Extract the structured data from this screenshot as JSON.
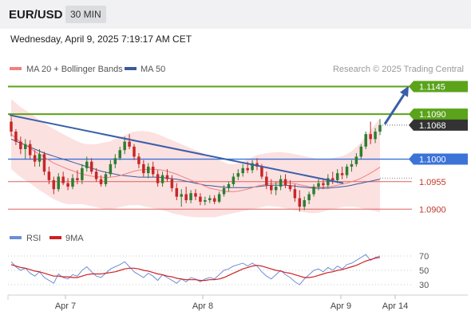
{
  "header": {
    "pair": "EUR/USD",
    "timeframe": "30 MIN",
    "datetime": "Wednesday, April 9, 2025 7:19:17 AM CET"
  },
  "legend": {
    "ma20_bb": "MA 20 + Bollinger Bands",
    "ma50": "MA 50",
    "research": "Research © 2025 Trading Central",
    "rsi": "RSI",
    "rsi_ma": "9MA"
  },
  "colors": {
    "resistance": "#5aa31a",
    "pivot": "#3b73d9",
    "support": "#e06060",
    "current": "#333333",
    "ma20": "#f08080",
    "ma50": "#3b5a9a",
    "bands": "#fbdcdc",
    "trendline": "#3a5fa8",
    "candle_up": "#2e7d32",
    "candle_down": "#c62828",
    "rsi": "#6b8fd6",
    "rsi_ma": "#d02020"
  },
  "chart_data": [
    {
      "type": "candlestick",
      "x_ticks": [
        "Apr 7",
        "Apr 8",
        "Apr 9",
        "Apr 14"
      ],
      "y_range": [
        1.0875,
        1.1165
      ],
      "levels": [
        {
          "value": 1.1145,
          "label": "1.1145",
          "kind": "resistance"
        },
        {
          "value": 1.109,
          "label": "1.1090",
          "kind": "resistance"
        },
        {
          "value": 1.1068,
          "label": "1.1068",
          "kind": "current"
        },
        {
          "value": 1.1,
          "label": "1.1000",
          "kind": "pivot"
        },
        {
          "value": 1.0955,
          "label": "1.0955",
          "kind": "support"
        },
        {
          "value": 1.09,
          "label": "1.0900",
          "kind": "support"
        }
      ],
      "ohlc": [
        [
          1.1075,
          1.1085,
          1.1045,
          1.1055
        ],
        [
          1.1055,
          1.106,
          1.1028,
          1.1035
        ],
        [
          1.1035,
          1.1045,
          1.101,
          1.102
        ],
        [
          1.102,
          1.104,
          1.1,
          1.103
        ],
        [
          1.103,
          1.1038,
          1.1,
          1.1008
        ],
        [
          1.1008,
          1.1018,
          1.0985,
          1.0995
        ],
        [
          1.0995,
          1.102,
          1.0985,
          1.101
        ],
        [
          1.101,
          1.1015,
          1.0968,
          1.0975
        ],
        [
          1.0975,
          1.0985,
          1.095,
          1.0958
        ],
        [
          1.0958,
          1.0965,
          1.093,
          1.094
        ],
        [
          1.094,
          1.0972,
          1.0935,
          1.0965
        ],
        [
          1.0965,
          1.0975,
          1.0948,
          1.0952
        ],
        [
          1.0952,
          1.0962,
          1.0938,
          1.0945
        ],
        [
          1.0945,
          1.097,
          1.094,
          1.0962
        ],
        [
          1.0962,
          1.0978,
          1.095,
          1.0958
        ],
        [
          1.0958,
          1.099,
          1.095,
          1.0982
        ],
        [
          1.0982,
          1.1005,
          1.0975,
          1.0995
        ],
        [
          1.0995,
          1.1002,
          1.097,
          1.0975
        ],
        [
          1.0975,
          1.0982,
          1.0955,
          1.096
        ],
        [
          1.096,
          1.0968,
          1.0945,
          1.095
        ],
        [
          1.095,
          1.0975,
          1.0945,
          1.097
        ],
        [
          1.097,
          1.0998,
          1.0965,
          1.099
        ],
        [
          1.099,
          1.101,
          1.0982,
          1.1002
        ],
        [
          1.1002,
          1.1025,
          1.0998,
          1.1018
        ],
        [
          1.1018,
          1.1045,
          1.101,
          1.1035
        ],
        [
          1.1035,
          1.105,
          1.102,
          1.1025
        ],
        [
          1.1025,
          1.103,
          1.0998,
          1.1005
        ],
        [
          1.1005,
          1.1012,
          1.0982,
          1.099
        ],
        [
          1.099,
          1.0998,
          1.0965,
          1.0972
        ],
        [
          1.0972,
          1.0992,
          1.0962,
          1.0985
        ],
        [
          1.0985,
          1.0995,
          1.0965,
          1.097
        ],
        [
          1.097,
          1.0978,
          1.0945,
          1.0952
        ],
        [
          1.0952,
          1.0975,
          1.0945,
          1.0968
        ],
        [
          1.0968,
          1.098,
          1.0955,
          1.096
        ],
        [
          1.096,
          1.0968,
          1.0935,
          1.0942
        ],
        [
          1.0942,
          1.0952,
          1.0918,
          1.0925
        ],
        [
          1.0925,
          1.094,
          1.0905,
          1.093
        ],
        [
          1.093,
          1.0945,
          1.0912,
          1.0918
        ],
        [
          1.0918,
          1.0938,
          1.0912,
          1.0932
        ],
        [
          1.0932,
          1.094,
          1.0918,
          1.0925
        ],
        [
          1.0925,
          1.0932,
          1.0908,
          1.0915
        ],
        [
          1.0915,
          1.0925,
          1.0908,
          1.0918
        ],
        [
          1.0918,
          1.0928,
          1.0912,
          1.0922
        ],
        [
          1.0922,
          1.0928,
          1.091,
          1.0915
        ],
        [
          1.0915,
          1.0935,
          1.0912,
          1.093
        ],
        [
          1.093,
          1.0948,
          1.0925,
          1.0942
        ],
        [
          1.0942,
          1.0955,
          1.0935,
          1.095
        ],
        [
          1.095,
          1.0972,
          1.0945,
          1.0965
        ],
        [
          1.0965,
          1.098,
          1.0958,
          1.0972
        ],
        [
          1.0972,
          1.099,
          1.0965,
          1.0982
        ],
        [
          1.0982,
          1.0995,
          1.0972,
          1.0978
        ],
        [
          1.0978,
          1.0998,
          1.0972,
          1.0992
        ],
        [
          1.0992,
          1.1002,
          1.0978,
          1.0985
        ],
        [
          1.0985,
          1.099,
          1.096,
          1.0965
        ],
        [
          1.0965,
          1.0975,
          1.094,
          1.0948
        ],
        [
          1.0948,
          1.096,
          1.093,
          1.0938
        ],
        [
          1.0938,
          1.0955,
          1.0928,
          1.0945
        ],
        [
          1.0945,
          1.0968,
          1.0938,
          1.096
        ],
        [
          1.096,
          1.097,
          1.0942,
          1.0948
        ],
        [
          1.0948,
          1.0958,
          1.0935,
          1.094
        ],
        [
          1.094,
          1.095,
          1.0915,
          1.0922
        ],
        [
          1.0922,
          1.0938,
          1.0895,
          1.0905
        ],
        [
          1.0905,
          1.0925,
          1.0898,
          1.0918
        ],
        [
          1.0918,
          1.0935,
          1.091,
          1.093
        ],
        [
          1.093,
          1.095,
          1.0925,
          1.0945
        ],
        [
          1.0945,
          1.096,
          1.0938,
          1.0952
        ],
        [
          1.0952,
          1.0962,
          1.094,
          1.0948
        ],
        [
          1.0948,
          1.097,
          1.0942,
          1.0962
        ],
        [
          1.0962,
          1.0975,
          1.095,
          1.0958
        ],
        [
          1.0958,
          1.098,
          1.0952,
          1.0972
        ],
        [
          1.0972,
          1.0985,
          1.096,
          1.0968
        ],
        [
          1.0968,
          1.099,
          1.0962,
          1.0985
        ],
        [
          1.0985,
          1.0998,
          1.0975,
          1.099
        ],
        [
          1.099,
          1.1012,
          1.0985,
          1.1005
        ],
        [
          1.1005,
          1.103,
          1.1,
          1.1025
        ],
        [
          1.1025,
          1.1055,
          1.102,
          1.105
        ],
        [
          1.105,
          1.1075,
          1.103,
          1.104
        ],
        [
          1.104,
          1.1062,
          1.1032,
          1.1055
        ],
        [
          1.1055,
          1.108,
          1.1048,
          1.1068
        ]
      ],
      "ma20": [
        1.105,
        1.1042,
        1.1034,
        1.1028,
        1.1022,
        1.1015,
        1.101,
        1.1004,
        1.0998,
        1.0992,
        1.0988,
        1.0984,
        1.098,
        1.0977,
        1.0973,
        1.097,
        1.0968,
        1.0966,
        1.0965,
        1.0964,
        1.0963,
        1.0964,
        1.0965,
        1.0967,
        1.097,
        1.0973,
        1.0976,
        1.0978,
        1.0979,
        1.098,
        1.098,
        1.0979,
        1.0978,
        1.0976,
        1.0973,
        1.097,
        1.0966,
        1.0962,
        1.0958,
        1.0954,
        1.095,
        1.0946,
        1.0942,
        1.094,
        1.0938,
        1.0936,
        1.0935,
        1.0935,
        1.0936,
        1.0938,
        1.094,
        1.0943,
        1.0946,
        1.0948,
        1.095,
        1.0951,
        1.0952,
        1.0953,
        1.0953,
        1.0952,
        1.0951,
        1.0949,
        1.0947,
        1.0945,
        1.0944,
        1.0944,
        1.0944,
        1.0945,
        1.0946,
        1.0948,
        1.095,
        1.0952,
        1.0955,
        1.0958,
        1.0962,
        1.0967,
        1.0972,
        1.0978,
        1.0984
      ],
      "bb_upper": [
        1.112,
        1.1112,
        1.1104,
        1.1098,
        1.1092,
        1.1085,
        1.1078,
        1.1072,
        1.1066,
        1.106,
        1.1055,
        1.105,
        1.1045,
        1.104,
        1.1036,
        1.1032,
        1.103,
        1.103,
        1.103,
        1.1032,
        1.1034,
        1.1036,
        1.104,
        1.1044,
        1.1048,
        1.1052,
        1.1055,
        1.1056,
        1.1056,
        1.1055,
        1.1053,
        1.105,
        1.1046,
        1.1042,
        1.1038,
        1.1034,
        1.103,
        1.1026,
        1.1022,
        1.1018,
        1.1014,
        1.101,
        1.1006,
        1.1002,
        1.0998,
        1.0994,
        1.099,
        1.099,
        1.0992,
        1.0996,
        1.1,
        1.1004,
        1.1008,
        1.101,
        1.1012,
        1.1013,
        1.1014,
        1.1014,
        1.1013,
        1.1012,
        1.101,
        1.1008,
        1.1006,
        1.1004,
        1.1002,
        1.1,
        1.1,
        1.1,
        1.1002,
        1.1004,
        1.1006,
        1.101,
        1.1016,
        1.1024,
        1.1034,
        1.1046,
        1.1058,
        1.107,
        1.1082
      ],
      "bb_lower": [
        1.098,
        1.0972,
        1.0964,
        1.0958,
        1.0952,
        1.0945,
        1.0938,
        1.0932,
        1.0926,
        1.092,
        1.0916,
        1.0912,
        1.091,
        1.091,
        1.091,
        1.091,
        1.0908,
        1.0906,
        1.0904,
        1.0902,
        1.09,
        1.09,
        1.0902,
        1.0904,
        1.0906,
        1.0908,
        1.0908,
        1.0908,
        1.0906,
        1.0904,
        1.0902,
        1.09,
        1.0898,
        1.0895,
        1.0892,
        1.089,
        1.0888,
        1.0886,
        1.0885,
        1.0884,
        1.0884,
        1.0884,
        1.0884,
        1.0884,
        1.0886,
        1.0888,
        1.089,
        1.0892,
        1.0894,
        1.0896,
        1.0898,
        1.09,
        1.0902,
        1.0904,
        1.0906,
        1.0906,
        1.0905,
        1.0904,
        1.0902,
        1.09,
        1.0898,
        1.0896,
        1.0894,
        1.0892,
        1.0892,
        1.0893,
        1.0895,
        1.0898,
        1.09,
        1.0902,
        1.0904,
        1.0905,
        1.0905,
        1.0904,
        1.0902,
        1.09,
        1.0898,
        1.0896,
        1.0894
      ],
      "ma50": [
        1.104,
        1.1036,
        1.1032,
        1.1028,
        1.1024,
        1.102,
        1.1016,
        1.1012,
        1.1009,
        1.1006,
        1.1003,
        1.1,
        1.0997,
        1.0994,
        1.0991,
        1.0988,
        1.0985,
        1.0982,
        1.0979,
        1.0976,
        1.0974,
        1.0972,
        1.097,
        1.0968,
        1.0967,
        1.0966,
        1.0965,
        1.0964,
        1.0964,
        1.0964,
        1.0964,
        1.0964,
        1.0963,
        1.0962,
        1.0961,
        1.096,
        1.0958,
        1.0956,
        1.0954,
        1.0952,
        1.095,
        1.0948,
        1.0947,
        1.0946,
        1.0945,
        1.0944,
        1.0943,
        1.0943,
        1.0943,
        1.0943,
        1.0943,
        1.0944,
        1.0945,
        1.0946,
        1.0947,
        1.0948,
        1.0948,
        1.0948,
        1.0948,
        1.0947,
        1.0946,
        1.0945,
        1.0944,
        1.0943,
        1.0942,
        1.0942,
        1.0942,
        1.0942,
        1.0943,
        1.0944,
        1.0945,
        1.0946,
        1.0948,
        1.095,
        1.0952,
        1.0954,
        1.0956,
        1.0958,
        1.096
      ]
    },
    {
      "type": "line",
      "name": "RSI",
      "y_range": [
        20,
        80
      ],
      "y_ticks": [
        70,
        50,
        30
      ],
      "x_ticks": [
        "Apr 7",
        "Apr 8",
        "Apr 9",
        "Apr 14"
      ],
      "rsi": [
        62,
        55,
        50,
        53,
        46,
        42,
        48,
        40,
        36,
        32,
        45,
        40,
        38,
        44,
        42,
        50,
        55,
        48,
        42,
        40,
        46,
        52,
        55,
        58,
        62,
        55,
        48,
        44,
        40,
        46,
        42,
        36,
        44,
        40,
        36,
        32,
        38,
        34,
        40,
        38,
        34,
        38,
        40,
        38,
        44,
        50,
        52,
        56,
        58,
        60,
        56,
        60,
        56,
        48,
        42,
        38,
        44,
        50,
        44,
        40,
        34,
        30,
        38,
        44,
        50,
        52,
        48,
        54,
        50,
        56,
        52,
        58,
        60,
        64,
        68,
        72,
        64,
        68,
        70
      ],
      "ma9": [
        58,
        56,
        54,
        53,
        51,
        49,
        48,
        46,
        44,
        42,
        42,
        41,
        41,
        40,
        40,
        42,
        44,
        45,
        45,
        45,
        46,
        47,
        48,
        50,
        52,
        53,
        53,
        52,
        50,
        49,
        47,
        45,
        44,
        42,
        41,
        39,
        38,
        37,
        37,
        37,
        36,
        36,
        37,
        37,
        38,
        40,
        43,
        46,
        49,
        52,
        54,
        56,
        57,
        56,
        54,
        52,
        50,
        49,
        47,
        46,
        44,
        42,
        40,
        40,
        41,
        43,
        45,
        47,
        48,
        50,
        51,
        53,
        55,
        57,
        60,
        63,
        65,
        67,
        68
      ]
    }
  ]
}
